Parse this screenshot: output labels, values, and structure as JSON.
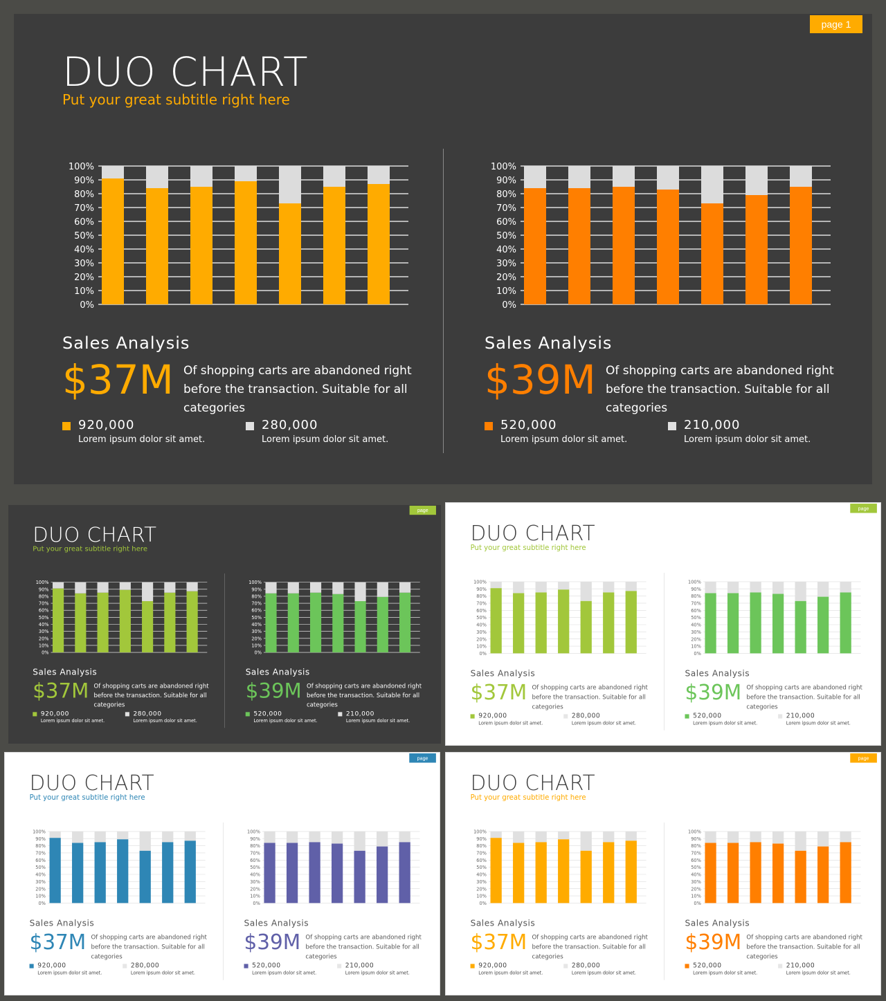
{
  "slides": [
    {
      "theme": "dark",
      "primary": "#ffab00",
      "secondary": "#ff7f00",
      "page_label": "page 1"
    },
    {
      "theme": "dark",
      "primary": "#a2c73b",
      "secondary": "#6cc55a",
      "page_label": "page"
    },
    {
      "theme": "light",
      "primary": "#a2c73b",
      "secondary": "#6cc55a",
      "page_label": "page"
    },
    {
      "theme": "light",
      "primary": "#2e86b5",
      "secondary": "#6060a8",
      "page_label": "page"
    },
    {
      "theme": "light",
      "primary": "#ffab00",
      "secondary": "#ff7f00",
      "page_label": "page"
    }
  ],
  "title": "DUO CHART",
  "subtitle": "Put your great subtitle right here",
  "left": {
    "section_title": "Sales  Analysis",
    "big_value": "$37M",
    "description": "Of shopping carts are abandoned right before the transaction. Suitable for all categories",
    "legend": [
      {
        "value": "920,000",
        "label": "Lorem ipsum dolor sit amet."
      },
      {
        "value": "280,000",
        "label": "Lorem ipsum dolor sit amet."
      }
    ]
  },
  "right": {
    "section_title": "Sales  Analysis",
    "big_value": "$39M",
    "description": "Of shopping carts are abandoned right before the transaction. Suitable for all categories",
    "legend": [
      {
        "value": "520,000",
        "label": "Lorem ipsum dolor sit amet."
      },
      {
        "value": "210,000",
        "label": "Lorem ipsum dolor sit amet."
      }
    ]
  },
  "chart_data": [
    {
      "type": "bar",
      "stacked": true,
      "y_ticks": [
        "0%",
        "10%",
        "20%",
        "30%",
        "40%",
        "50%",
        "60%",
        "70%",
        "80%",
        "90%",
        "100%"
      ],
      "ylim": [
        0,
        100
      ],
      "series": [
        {
          "values": [
            91,
            84,
            85,
            89,
            73,
            85,
            87
          ]
        },
        {
          "values": [
            9,
            16,
            15,
            11,
            27,
            15,
            13
          ]
        }
      ],
      "grid": true
    },
    {
      "type": "bar",
      "stacked": true,
      "y_ticks": [
        "0%",
        "10%",
        "20%",
        "30%",
        "40%",
        "50%",
        "60%",
        "70%",
        "80%",
        "90%",
        "100%"
      ],
      "ylim": [
        0,
        100
      ],
      "series": [
        {
          "values": [
            84,
            84,
            85,
            83,
            73,
            79,
            85
          ]
        },
        {
          "values": [
            16,
            16,
            15,
            17,
            27,
            21,
            15
          ]
        }
      ],
      "grid": true
    }
  ]
}
